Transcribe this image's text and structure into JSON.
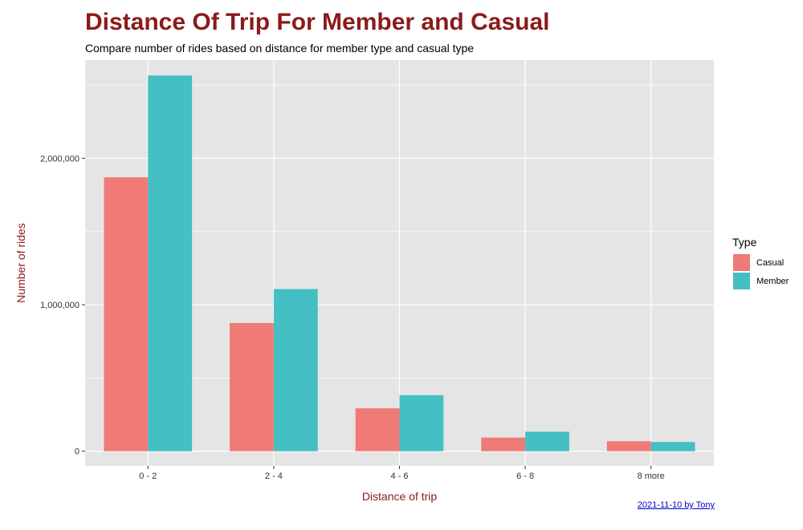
{
  "chart_data": {
    "type": "bar",
    "title": "Distance Of Trip For Member and Casual",
    "subtitle": "Compare number of rides based on distance for member type and casual type",
    "xlabel": "Distance of trip",
    "ylabel": "Number of rides",
    "categories": [
      "0 - 2",
      "2 - 4",
      "4 - 6",
      "6 - 8",
      "8 more"
    ],
    "series": [
      {
        "name": "Casual",
        "color": "#f07a76",
        "values": [
          1870000,
          875000,
          293000,
          93000,
          68000
        ]
      },
      {
        "name": "Member",
        "color": "#44bfc4",
        "values": [
          2565000,
          1107000,
          383000,
          133000,
          63000
        ]
      }
    ],
    "ylim": [
      -100000,
      2670000
    ],
    "yticks": [
      0,
      1000000,
      2000000
    ],
    "ytick_labels": [
      "0",
      "1,000,000",
      "2,000,000"
    ],
    "grid": true,
    "legend": {
      "title": "Type",
      "position": "right"
    },
    "caption": "2021-11-10 by Tony",
    "colors": {
      "title": "#8b1a1a",
      "axis_title": "#8b1a1a",
      "panel": "#e5e5e5",
      "grid": "#ffffff",
      "caption_link": "#0000cc"
    }
  }
}
